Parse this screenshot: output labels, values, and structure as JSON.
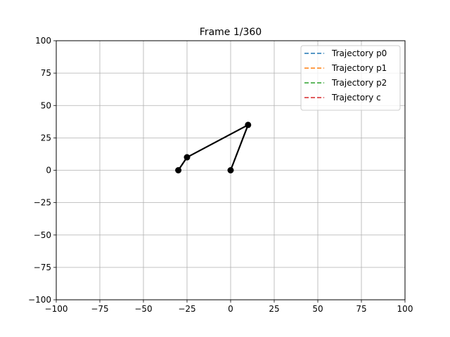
{
  "chart_data": {
    "type": "line",
    "title": "Frame 1/360",
    "xlabel": "",
    "ylabel": "",
    "xlim": [
      -100,
      100
    ],
    "ylim": [
      -100,
      100
    ],
    "xticks": [
      -100,
      -75,
      -50,
      -25,
      0,
      25,
      50,
      75,
      100
    ],
    "yticks": [
      -100,
      -75,
      -50,
      -25,
      0,
      25,
      50,
      75,
      100
    ],
    "xtick_labels": [
      "−100",
      "−75",
      "−50",
      "−25",
      "0",
      "25",
      "50",
      "75",
      "100"
    ],
    "ytick_labels": [
      "−100",
      "−75",
      "−50",
      "−25",
      "0",
      "25",
      "50",
      "75",
      "100"
    ],
    "grid": true,
    "legend_position": "top-right",
    "series": [
      {
        "name": "Trajectory p0",
        "color": "#1f77b4",
        "style": "dashed",
        "x": [],
        "y": []
      },
      {
        "name": "Trajectory p1",
        "color": "#ff7f0e",
        "style": "dashed",
        "x": [],
        "y": []
      },
      {
        "name": "Trajectory p2",
        "color": "#2ca02c",
        "style": "dashed",
        "x": [],
        "y": []
      },
      {
        "name": "Trajectory c",
        "color": "#d62728",
        "style": "dashed",
        "x": [],
        "y": []
      }
    ],
    "linkage": {
      "color": "#000000",
      "points": [
        {
          "x": -30,
          "y": 0
        },
        {
          "x": -25,
          "y": 10
        },
        {
          "x": 10,
          "y": 35
        },
        {
          "x": 0,
          "y": 0
        }
      ]
    }
  }
}
